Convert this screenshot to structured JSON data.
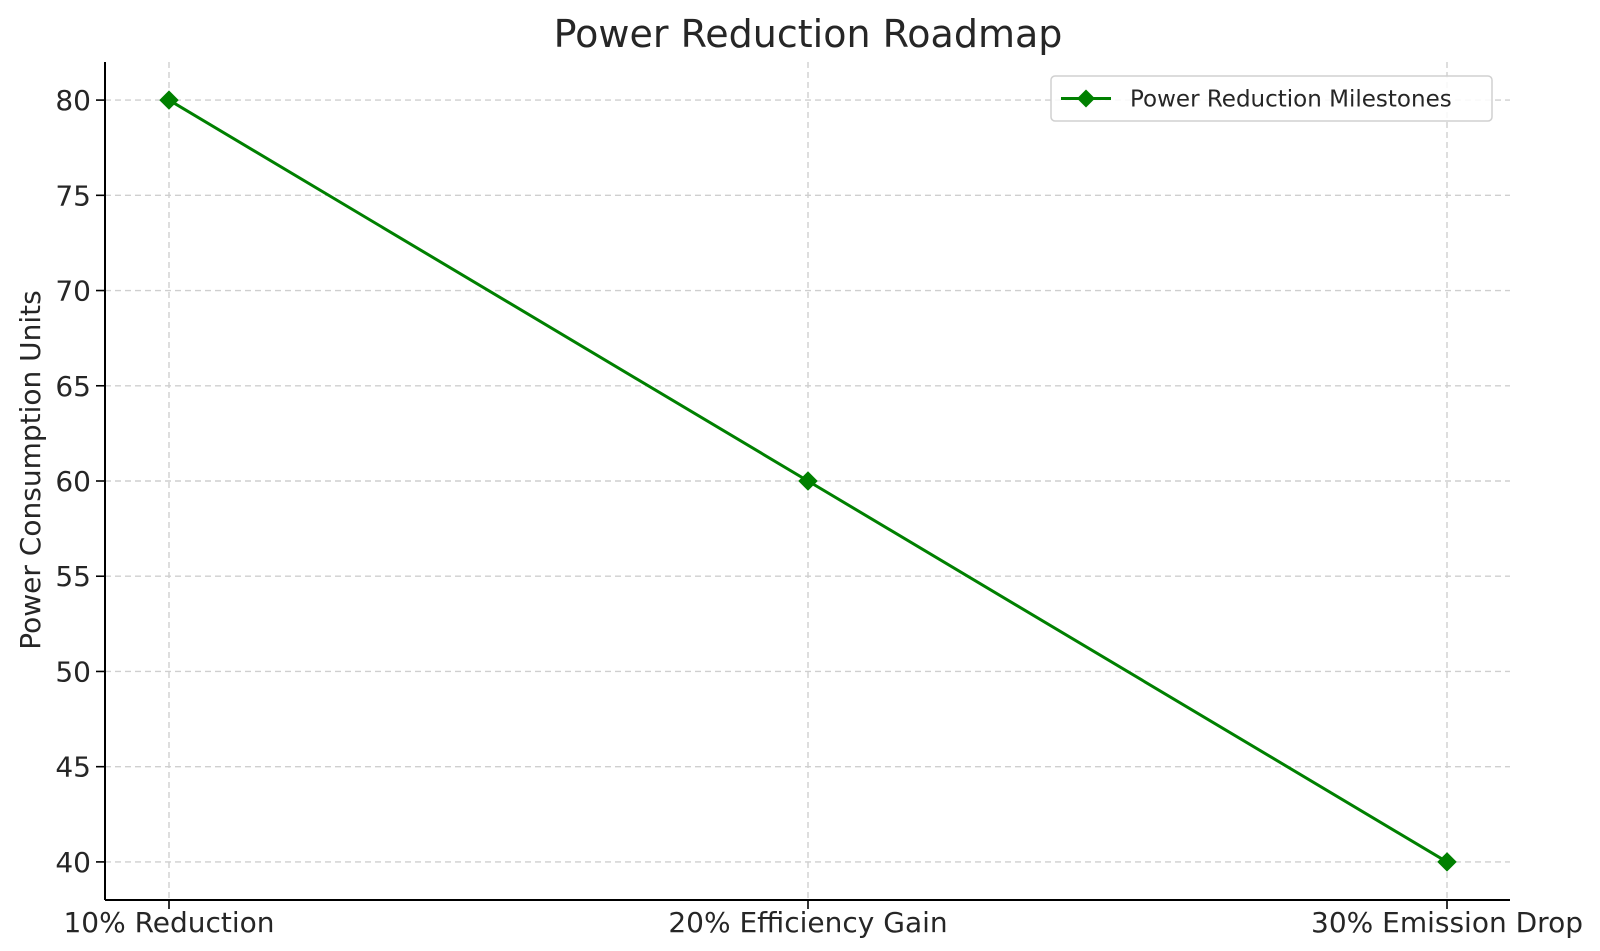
{
  "chart_data": {
    "type": "line",
    "title": "Power Reduction Roadmap",
    "xlabel": "",
    "ylabel": "Power Consumption Units",
    "categories": [
      "10% Reduction",
      "20% Efficiency Gain",
      "30% Emission Drop"
    ],
    "series": [
      {
        "name": "Power Reduction Milestones",
        "values": [
          80,
          60,
          40
        ],
        "color": "#008000",
        "marker": "diamond"
      }
    ],
    "ylim": [
      38,
      82
    ],
    "yticks": [
      40,
      45,
      50,
      55,
      60,
      65,
      70,
      75,
      80
    ],
    "grid": true,
    "legend_position": "top-right"
  }
}
